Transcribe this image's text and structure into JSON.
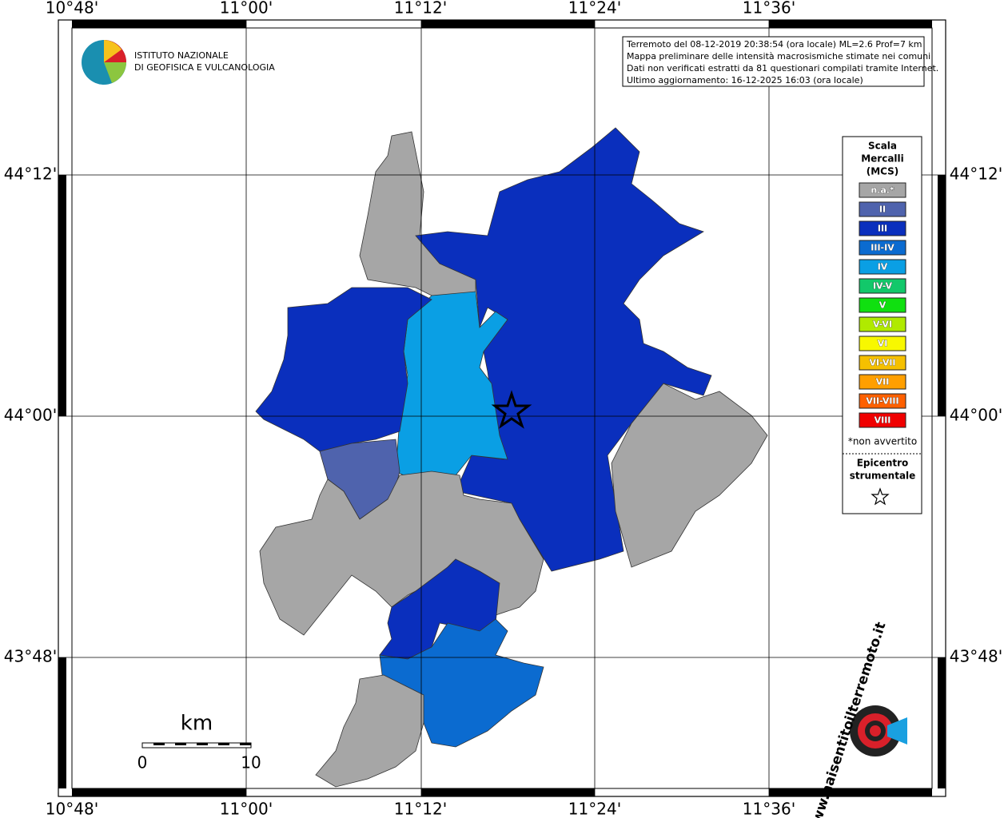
{
  "map": {
    "lon_labels": [
      "10°48'",
      "11°00'",
      "11°12'",
      "11°24'",
      "11°36'"
    ],
    "lat_labels": [
      "44°12'",
      "44°00'",
      "43°48'"
    ],
    "info": [
      "Terremoto del 08-12-2019 20:38:54 (ora locale) ML=2.6 Prof=7 km",
      "Mappa preliminare delle intensità macrosismiche stimate nei comuni",
      "Dati non verificati estratti da 81 questionari compilati tramite Internet.",
      "Ultimo aggiornamento: 16-12-2025 16:03 (ora locale)"
    ],
    "logo": [
      "ISTITUTO NAZIONALE",
      "DI GEOFISICA E VULCANOLOGIA"
    ],
    "legend": {
      "title": [
        "Scala",
        "Mercalli",
        "(MCS)"
      ],
      "classes": [
        {
          "label": "n.a.*",
          "color": "#a6a6a6"
        },
        {
          "label": "II",
          "color": "#4f63ad"
        },
        {
          "label": "III",
          "color": "#0a2fbd"
        },
        {
          "label": "III-IV",
          "color": "#0b6bd0"
        },
        {
          "label": "IV",
          "color": "#0a9fe4"
        },
        {
          "label": "IV-V",
          "color": "#12c86a"
        },
        {
          "label": "V",
          "color": "#10e010"
        },
        {
          "label": "V-VI",
          "color": "#b0ea00"
        },
        {
          "label": "VI",
          "color": "#f8f800"
        },
        {
          "label": "VI-VII",
          "color": "#f5c000"
        },
        {
          "label": "VII",
          "color": "#ff9f00"
        },
        {
          "label": "VII-VIII",
          "color": "#ff6000"
        },
        {
          "label": "VIII",
          "color": "#f00000"
        }
      ],
      "note": "*non avvertito",
      "epicenter": [
        "Epicentro",
        "strumentale"
      ]
    },
    "scale_bar": {
      "unit": "km",
      "labels": [
        "0",
        "10"
      ]
    },
    "watermark": "www.haisentitoilterremoto.it"
  }
}
